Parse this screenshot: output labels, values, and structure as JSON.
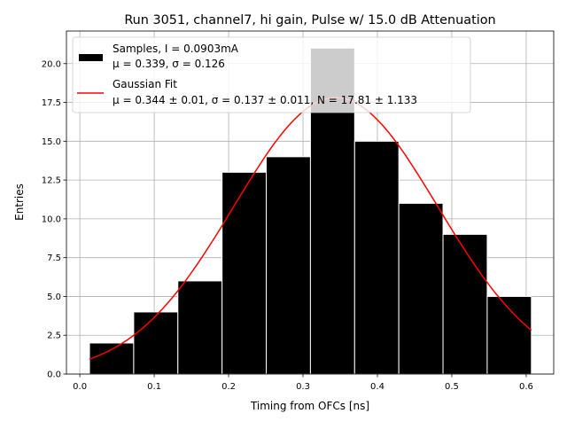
{
  "chart_data": {
    "type": "bar",
    "title": "Run 3051, channel7, hi gain, Pulse w/ 15.0 dB Attenuation",
    "xlabel": "Timing from OFCs [ns]",
    "ylabel": "Entries",
    "xlim": [
      -0.018,
      0.637
    ],
    "ylim": [
      0,
      22.1
    ],
    "grid": true,
    "xticks": [
      0.0,
      0.1,
      0.2,
      0.3,
      0.4,
      0.5,
      0.6
    ],
    "xtick_labels": [
      "0.0",
      "0.1",
      "0.2",
      "0.3",
      "0.4",
      "0.5",
      "0.6"
    ],
    "yticks": [
      0,
      2.5,
      5,
      7.5,
      10,
      12.5,
      15,
      17.5,
      20
    ],
    "ytick_labels": [
      "0.0",
      "2.5",
      "5.0",
      "7.5",
      "10.0",
      "12.5",
      "15.0",
      "17.5",
      "20.0"
    ],
    "bin_edges": [
      0.013,
      0.0724,
      0.1318,
      0.1912,
      0.2506,
      0.31,
      0.3694,
      0.4288,
      0.4882,
      0.5476,
      0.607
    ],
    "values": [
      2,
      4,
      6,
      13,
      14,
      21,
      15,
      11,
      9,
      5
    ],
    "bar_color": "#000000",
    "fit": {
      "type": "gaussian",
      "mu": 0.344,
      "sigma": 0.137,
      "N": 17.81,
      "color": "#ff0000"
    },
    "legend_position": "top-left",
    "legend": [
      {
        "line1": "Samples, I = 0.0903mA",
        "line2": "μ = 0.339, σ = 0.126"
      },
      {
        "line1": "Gaussian Fit",
        "line2": "μ = 0.344 ± 0.01, σ = 0.137 ± 0.011, N = 17.81 ± 1.133"
      }
    ]
  }
}
